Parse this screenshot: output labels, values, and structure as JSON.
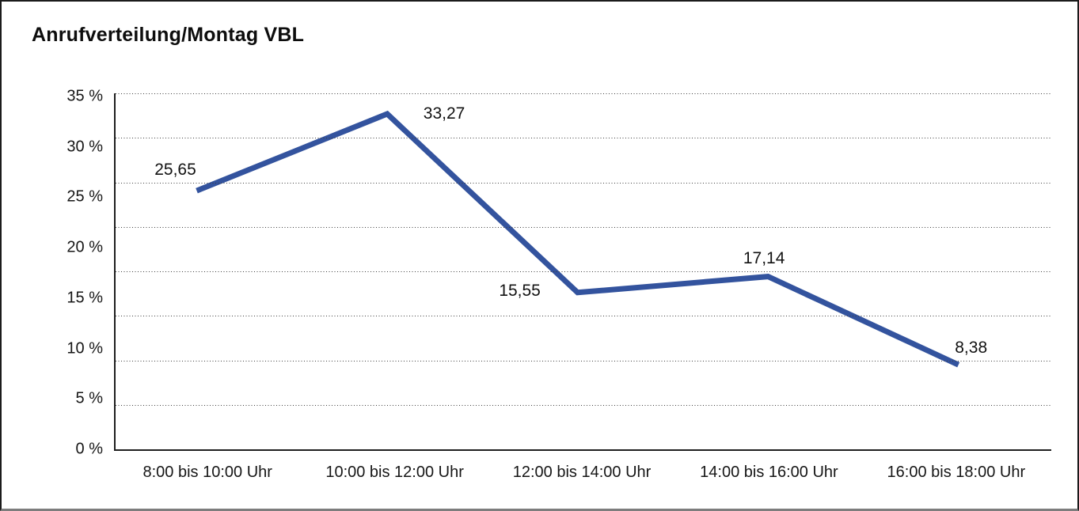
{
  "window": {
    "background": "#ffffff",
    "frame_border_color": "#1b1b1b",
    "frame_bottom_edge_color": "#7d7d7d"
  },
  "title": "Anrufverteilung/Montag VBL",
  "chart_data": {
    "type": "line",
    "title": "Anrufverteilung/Montag VBL",
    "categories": [
      "8:00 bis 10:00 Uhr",
      "10:00 bis 12:00 Uhr",
      "12:00 bis 14:00 Uhr",
      "14:00 bis 16:00 Uhr",
      "16:00 bis 18:00 Uhr"
    ],
    "series": [
      {
        "name": "Anrufverteilung Montag VBL",
        "values": [
          25.65,
          33.27,
          15.55,
          17.14,
          8.38
        ]
      }
    ],
    "point_labels": [
      "25,65",
      "33,27",
      "15,55",
      "17,14",
      "8,38"
    ],
    "y_tick_labels": [
      "35 %",
      "30 %",
      "25 %",
      "20 %",
      "15 %",
      "10 %",
      "5 %",
      "0 %"
    ],
    "ylim": [
      0,
      35
    ],
    "y_tick_step": 5,
    "xlabel": "",
    "ylabel": "",
    "grid": "horizontal-dotted",
    "grid_band_count": 8,
    "legend_position": "none",
    "line_color": "#33539E",
    "axis_color": "#1f1f1f",
    "text_color": "#161616"
  }
}
